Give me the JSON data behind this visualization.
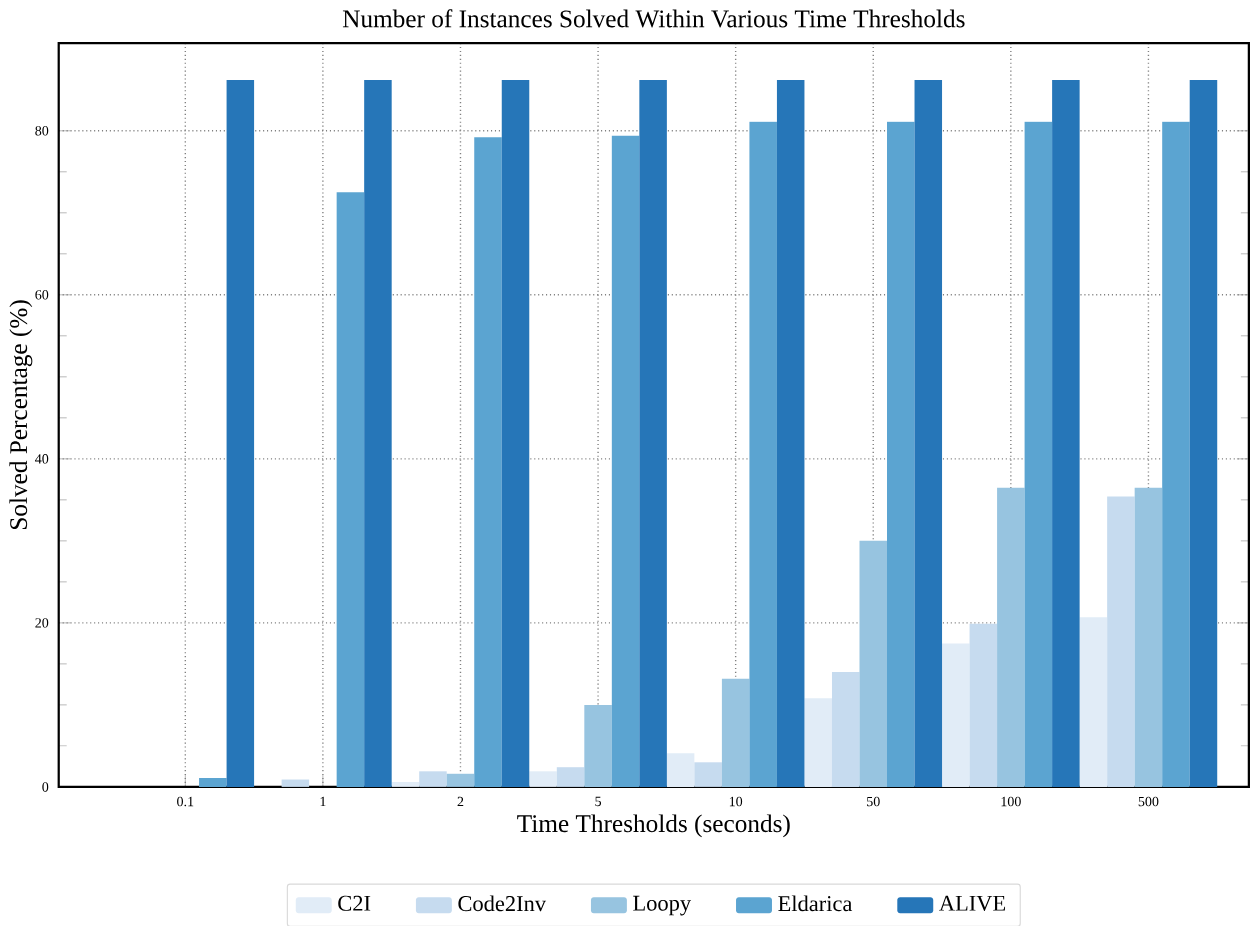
{
  "chart_data": {
    "type": "bar",
    "title": "Number of Instances Solved Within Various Time Thresholds",
    "xlabel": "Time Thresholds (seconds)",
    "ylabel": "Solved Percentage (%)",
    "categories": [
      "0.1",
      "1",
      "2",
      "5",
      "10",
      "50",
      "100",
      "500"
    ],
    "series": [
      {
        "name": "C2I",
        "color": "#e1ecf7",
        "values": [
          0,
          0,
          0.6,
          1.9,
          4.1,
          10.8,
          17.5,
          20.7
        ]
      },
      {
        "name": "Code2Inv",
        "color": "#c6dbef",
        "values": [
          0,
          0.9,
          1.9,
          2.4,
          3.0,
          14.0,
          19.9,
          35.4
        ]
      },
      {
        "name": "Loopy",
        "color": "#97c4e0",
        "values": [
          0,
          0,
          1.6,
          10.0,
          13.2,
          30.0,
          36.5,
          36.5
        ]
      },
      {
        "name": "Eldarica",
        "color": "#5ba4d1",
        "values": [
          1.1,
          72.5,
          79.2,
          79.4,
          81.1,
          81.1,
          81.1,
          81.1
        ]
      },
      {
        "name": "ALIVE",
        "color": "#2676b8",
        "values": [
          86.2,
          86.2,
          86.2,
          86.2,
          86.2,
          86.2,
          86.2,
          86.2
        ]
      }
    ],
    "ylim": [
      0,
      90.7
    ],
    "yticks": [
      0,
      20,
      40,
      60,
      80
    ],
    "grid": true,
    "legend": "bottom"
  }
}
